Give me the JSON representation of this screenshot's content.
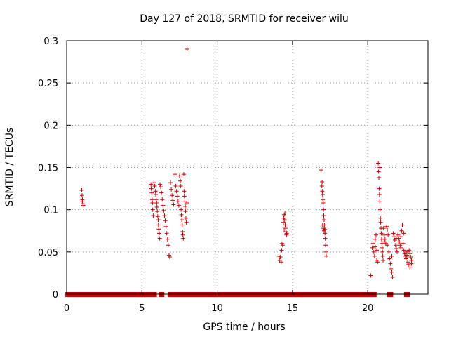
{
  "chart_data": {
    "type": "scatter",
    "title": "Day 127 of 2018, SRMTID for receiver wilu",
    "xlabel": "GPS time / hours",
    "ylabel": "SRMTID / TECUs",
    "xlim": [
      0,
      24
    ],
    "ylim": [
      0,
      0.3
    ],
    "xticks": [
      0,
      5,
      10,
      15,
      20
    ],
    "xtick_labels": [
      "0",
      "5",
      "10",
      "15",
      "20"
    ],
    "yticks": [
      0,
      0.05,
      0.1,
      0.15,
      0.2,
      0.25,
      0.3
    ],
    "ytick_labels": [
      "0",
      "0.05",
      "0.1",
      "0.15",
      "0.2",
      "0.25",
      "0.3"
    ],
    "grid": true,
    "marker": "+",
    "color": "#cc0000",
    "zero_segments": [
      [
        0.05,
        5.85
      ],
      [
        6.25,
        6.35
      ],
      [
        6.85,
        6.95
      ],
      [
        7.05,
        7.55
      ],
      [
        7.75,
        14.5
      ],
      [
        14.65,
        20.45
      ],
      [
        21.4,
        21.55
      ],
      [
        22.55,
        22.65
      ]
    ],
    "series": [
      {
        "name": "SRMTID",
        "points": [
          [
            1.0,
            0.123
          ],
          [
            1.02,
            0.117
          ],
          [
            1.05,
            0.112
          ],
          [
            1.08,
            0.107
          ],
          [
            1.1,
            0.105
          ],
          [
            1.04,
            0.11
          ],
          [
            5.6,
            0.13
          ],
          [
            5.62,
            0.125
          ],
          [
            5.65,
            0.12
          ],
          [
            5.68,
            0.112
          ],
          [
            5.7,
            0.108
          ],
          [
            5.72,
            0.1
          ],
          [
            5.75,
            0.093
          ],
          [
            5.8,
            0.132
          ],
          [
            5.85,
            0.128
          ],
          [
            5.9,
            0.122
          ],
          [
            5.92,
            0.118
          ],
          [
            5.95,
            0.112
          ],
          [
            5.98,
            0.108
          ],
          [
            6.0,
            0.103
          ],
          [
            6.02,
            0.098
          ],
          [
            6.05,
            0.092
          ],
          [
            6.08,
            0.088
          ],
          [
            6.1,
            0.082
          ],
          [
            6.12,
            0.077
          ],
          [
            6.15,
            0.072
          ],
          [
            6.18,
            0.066
          ],
          [
            6.2,
            0.13
          ],
          [
            6.25,
            0.127
          ],
          [
            6.3,
            0.12
          ],
          [
            6.35,
            0.112
          ],
          [
            6.4,
            0.105
          ],
          [
            6.45,
            0.099
          ],
          [
            6.5,
            0.093
          ],
          [
            6.55,
            0.087
          ],
          [
            6.6,
            0.08
          ],
          [
            6.65,
            0.072
          ],
          [
            6.7,
            0.065
          ],
          [
            6.75,
            0.058
          ],
          [
            6.8,
            0.046
          ],
          [
            6.85,
            0.044
          ],
          [
            6.9,
            0.132
          ],
          [
            6.95,
            0.124
          ],
          [
            7.0,
            0.117
          ],
          [
            7.05,
            0.111
          ],
          [
            7.1,
            0.106
          ],
          [
            7.2,
            0.142
          ],
          [
            7.25,
            0.128
          ],
          [
            7.3,
            0.122
          ],
          [
            7.35,
            0.116
          ],
          [
            7.4,
            0.11
          ],
          [
            7.45,
            0.105
          ],
          [
            7.5,
            0.14
          ],
          [
            7.55,
            0.134
          ],
          [
            7.58,
            0.128
          ],
          [
            7.6,
            0.1
          ],
          [
            7.62,
            0.094
          ],
          [
            7.65,
            0.088
          ],
          [
            7.68,
            0.082
          ],
          [
            7.7,
            0.074
          ],
          [
            7.72,
            0.07
          ],
          [
            7.75,
            0.066
          ],
          [
            7.78,
            0.142
          ],
          [
            7.8,
            0.122
          ],
          [
            7.82,
            0.116
          ],
          [
            7.85,
            0.11
          ],
          [
            7.88,
            0.104
          ],
          [
            7.9,
            0.098
          ],
          [
            7.92,
            0.09
          ],
          [
            7.95,
            0.085
          ],
          [
            7.98,
            0.108
          ],
          [
            8.0,
            0.29
          ],
          [
            14.1,
            0.045
          ],
          [
            14.15,
            0.04
          ],
          [
            14.2,
            0.044
          ],
          [
            14.25,
            0.038
          ],
          [
            14.28,
            0.052
          ],
          [
            14.3,
            0.06
          ],
          [
            14.35,
            0.058
          ],
          [
            14.4,
            0.085
          ],
          [
            14.42,
            0.09
          ],
          [
            14.45,
            0.094
          ],
          [
            14.48,
            0.088
          ],
          [
            14.5,
            0.096
          ],
          [
            14.52,
            0.082
          ],
          [
            14.55,
            0.078
          ],
          [
            14.58,
            0.074
          ],
          [
            14.6,
            0.07
          ],
          [
            14.62,
            0.072
          ],
          [
            14.45,
            0.076
          ],
          [
            16.9,
            0.147
          ],
          [
            16.95,
            0.128
          ],
          [
            16.98,
            0.122
          ],
          [
            17.0,
            0.118
          ],
          [
            17.02,
            0.112
          ],
          [
            17.04,
            0.108
          ],
          [
            17.06,
            0.1
          ],
          [
            17.08,
            0.093
          ],
          [
            17.1,
            0.088
          ],
          [
            17.12,
            0.082
          ],
          [
            17.14,
            0.077
          ],
          [
            17.16,
            0.072
          ],
          [
            17.18,
            0.066
          ],
          [
            17.2,
            0.058
          ],
          [
            17.22,
            0.05
          ],
          [
            17.24,
            0.045
          ],
          [
            17.0,
            0.082
          ],
          [
            17.05,
            0.078
          ],
          [
            16.97,
            0.133
          ],
          [
            17.1,
            0.075
          ],
          [
            20.2,
            0.022
          ],
          [
            20.3,
            0.055
          ],
          [
            20.35,
            0.06
          ],
          [
            20.4,
            0.05
          ],
          [
            20.45,
            0.045
          ],
          [
            20.5,
            0.065
          ],
          [
            20.55,
            0.07
          ],
          [
            20.6,
            0.04
          ],
          [
            20.65,
            0.038
          ],
          [
            20.7,
            0.155
          ],
          [
            20.72,
            0.145
          ],
          [
            20.74,
            0.138
          ],
          [
            20.76,
            0.125
          ],
          [
            20.78,
            0.118
          ],
          [
            20.8,
            0.11
          ],
          [
            20.82,
            0.1
          ],
          [
            20.84,
            0.09
          ],
          [
            20.86,
            0.085
          ],
          [
            20.88,
            0.078
          ],
          [
            20.9,
            0.072
          ],
          [
            20.92,
            0.065
          ],
          [
            20.94,
            0.06
          ],
          [
            20.96,
            0.055
          ],
          [
            20.98,
            0.05
          ],
          [
            21.0,
            0.045
          ],
          [
            21.02,
            0.04
          ],
          [
            21.05,
            0.078
          ],
          [
            21.1,
            0.07
          ],
          [
            21.15,
            0.065
          ],
          [
            21.2,
            0.06
          ],
          [
            21.25,
            0.08
          ],
          [
            21.3,
            0.076
          ],
          [
            21.35,
            0.07
          ],
          [
            21.4,
            0.05
          ],
          [
            21.45,
            0.042
          ],
          [
            21.5,
            0.036
          ],
          [
            21.55,
            0.03
          ],
          [
            21.6,
            0.026
          ],
          [
            21.65,
            0.02
          ],
          [
            21.7,
            0.072
          ],
          [
            21.75,
            0.068
          ],
          [
            21.8,
            0.064
          ],
          [
            21.85,
            0.058
          ],
          [
            21.9,
            0.054
          ],
          [
            21.95,
            0.05
          ],
          [
            22.0,
            0.07
          ],
          [
            22.05,
            0.066
          ],
          [
            22.1,
            0.062
          ],
          [
            22.15,
            0.058
          ],
          [
            22.2,
            0.055
          ],
          [
            22.25,
            0.075
          ],
          [
            22.3,
            0.082
          ],
          [
            22.35,
            0.06
          ],
          [
            22.4,
            0.052
          ],
          [
            22.45,
            0.048
          ],
          [
            22.5,
            0.045
          ],
          [
            22.55,
            0.042
          ],
          [
            22.6,
            0.05
          ],
          [
            22.65,
            0.038
          ],
          [
            22.7,
            0.035
          ],
          [
            22.75,
            0.052
          ],
          [
            22.8,
            0.048
          ],
          [
            22.85,
            0.044
          ],
          [
            22.9,
            0.04
          ],
          [
            22.9,
            0.036
          ],
          [
            20.5,
            0.056
          ],
          [
            20.6,
            0.052
          ],
          [
            20.8,
            0.15
          ],
          [
            21.1,
            0.062
          ],
          [
            21.3,
            0.058
          ],
          [
            21.6,
            0.045
          ],
          [
            21.9,
            0.066
          ],
          [
            22.2,
            0.068
          ],
          [
            22.4,
            0.072
          ],
          [
            22.6,
            0.046
          ],
          [
            22.8,
            0.032
          ]
        ]
      }
    ]
  }
}
